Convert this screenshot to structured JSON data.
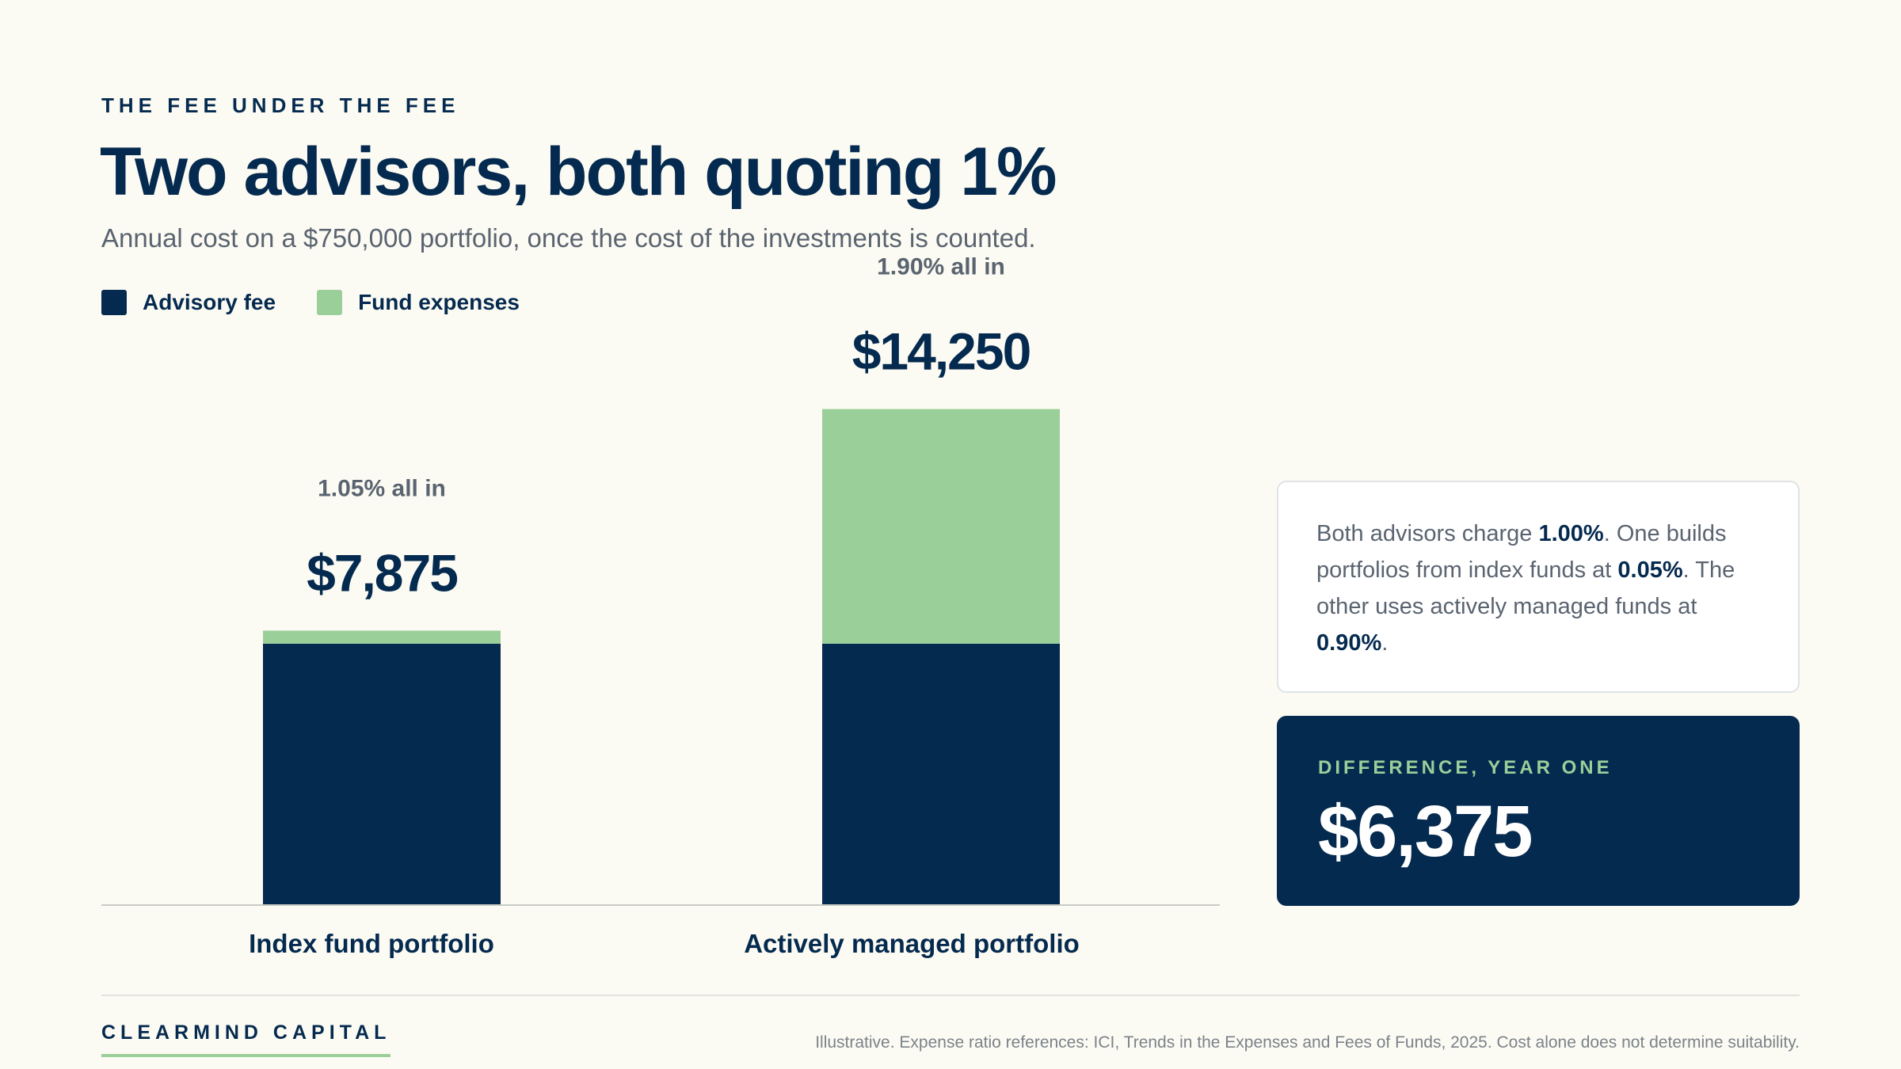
{
  "eyebrow": "THE FEE UNDER THE FEE",
  "title": "Two advisors, both quoting 1%",
  "subtitle": "Annual cost on a $750,000 portfolio, once the cost of the investments is counted.",
  "legend": [
    {
      "label": "Advisory fee",
      "color": "#052a4f"
    },
    {
      "label": "Fund expenses",
      "color": "#9bcf9a"
    }
  ],
  "chart_data": {
    "type": "bar",
    "stacked": true,
    "categories": [
      "Index fund portfolio",
      "Actively managed portfolio"
    ],
    "series": [
      {
        "name": "Advisory fee",
        "values": [
          7500,
          7500
        ],
        "color": "#052a4f"
      },
      {
        "name": "Fund expenses",
        "values": [
          375,
          6750
        ],
        "color": "#9bcf9a"
      }
    ],
    "totals": [
      "$7,875",
      "$14,250"
    ],
    "total_rates": [
      "1.05% all in",
      "1.90% all in"
    ],
    "ylim": [
      0,
      18000
    ],
    "grid": false
  },
  "callout": {
    "t1": "Both advisors charge ",
    "b1": "1.00%",
    "t2": ". One builds portfolios from index funds at ",
    "b2": "0.05%",
    "t3": ". The other uses actively managed funds at ",
    "b3": "0.90%",
    "t4": "."
  },
  "difference": {
    "label": "DIFFERENCE, YEAR ONE",
    "value": "$6,375"
  },
  "footer": {
    "brand": "CLEARMIND CAPITAL",
    "source": "Illustrative. Expense ratio references: ICI, Trends in the Expenses and Fees of Funds, 2025. Cost alone does not determine suitability."
  }
}
